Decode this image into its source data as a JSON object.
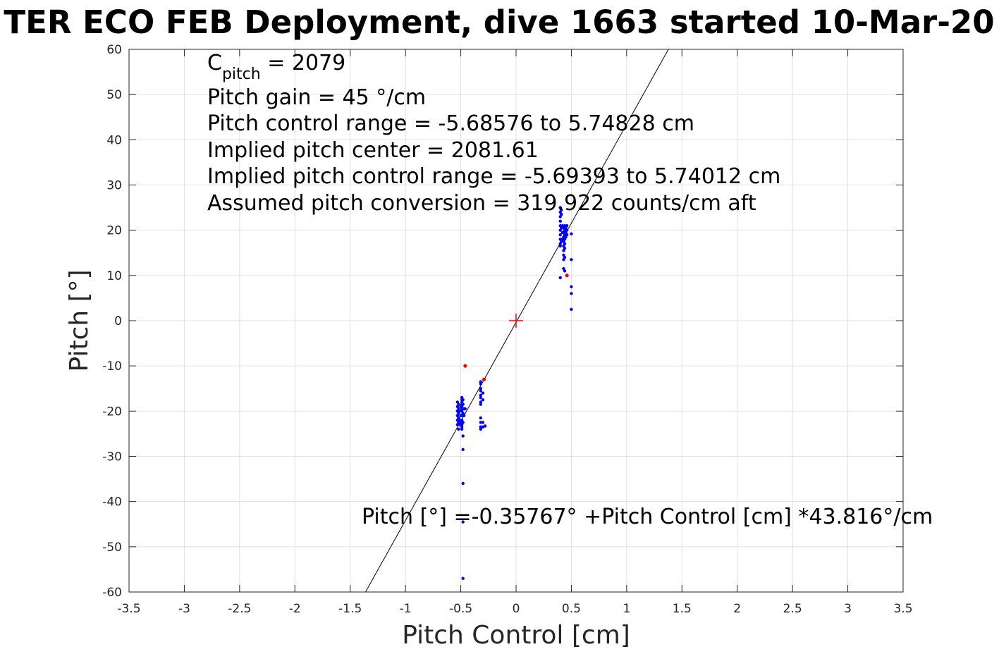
{
  "chart_data": {
    "type": "scatter",
    "title": "TER ECO FEB Deployment, dive 1663 started 10-Mar-20",
    "xlabel": "Pitch Control [cm]",
    "ylabel": "Pitch [°]",
    "xlim": [
      -3.5,
      3.5
    ],
    "ylim": [
      -60,
      60
    ],
    "x_ticks": [
      -3.5,
      -3,
      -2.5,
      -2,
      -1.5,
      -1,
      -0.5,
      0,
      0.5,
      1,
      1.5,
      2,
      2.5,
      3,
      3.5
    ],
    "x_tick_labels": [
      "-3.5",
      "-3",
      "-2.5",
      "-2",
      "-1.5",
      "-1",
      "-0.5",
      "0",
      "0.5",
      "1",
      "1.5",
      "2",
      "2.5",
      "3",
      "3.5"
    ],
    "y_ticks": [
      60,
      50,
      40,
      30,
      20,
      10,
      0,
      -10,
      -20,
      -30,
      -40,
      -50,
      -60
    ],
    "y_tick_labels": [
      "60",
      "50",
      "40",
      "30",
      "20",
      "10",
      "0",
      "-10",
      "-20",
      "-30",
      "-40",
      "-50",
      "-60"
    ],
    "grid": true,
    "annotations": {
      "c_pitch_main": "C",
      "c_pitch_sub": "pitch",
      "c_pitch_value": " = 2079",
      "pitch_gain": "Pitch gain = 45 °/cm",
      "control_range": "Pitch control range = -5.68576 to 5.74828 cm",
      "implied_center": "Implied pitch center = 2081.61",
      "implied_range": "Implied pitch control range = -5.69393 to 5.74012 cm",
      "conversion": "Assumed pitch conversion = 319.922 counts/cm aft",
      "fit_equation": "Pitch [°] =-0.35767° +Pitch Control [cm] *43.816°/cm"
    },
    "fit_line": {
      "intercept": -0.35767,
      "slope": 43.816,
      "color": "#000000",
      "x_range": [
        -1.36,
        1.38
      ]
    },
    "center_marker": {
      "x": 0,
      "y": 0,
      "color": "#ff0000"
    },
    "series": [
      {
        "color": "#0000ff",
        "points": [
          [
            -0.53,
            -18
          ],
          [
            -0.53,
            -19
          ],
          [
            -0.53,
            -20
          ],
          [
            -0.53,
            -21
          ],
          [
            -0.53,
            -22
          ],
          [
            -0.53,
            -23
          ],
          [
            -0.52,
            -18.5
          ],
          [
            -0.52,
            -19.5
          ],
          [
            -0.52,
            -20.5
          ],
          [
            -0.52,
            -21.5
          ],
          [
            -0.52,
            -22.5
          ],
          [
            -0.52,
            -24
          ],
          [
            -0.51,
            -20
          ],
          [
            -0.51,
            -22
          ],
          [
            -0.51,
            -23
          ],
          [
            -0.5,
            -19
          ],
          [
            -0.5,
            -21
          ],
          [
            -0.5,
            -22.5
          ],
          [
            -0.49,
            -17
          ],
          [
            -0.49,
            -17.5
          ],
          [
            -0.49,
            -18
          ],
          [
            -0.49,
            -18.5
          ],
          [
            -0.49,
            -19
          ],
          [
            -0.49,
            -19.5
          ],
          [
            -0.49,
            -20
          ],
          [
            -0.49,
            -21
          ],
          [
            -0.49,
            -22
          ],
          [
            -0.49,
            -23
          ],
          [
            -0.49,
            -23.5
          ],
          [
            -0.49,
            -24
          ],
          [
            -0.48,
            -17.5
          ],
          [
            -0.48,
            -18.5
          ],
          [
            -0.48,
            -20.5
          ],
          [
            -0.48,
            -22.5
          ],
          [
            -0.48,
            -25.5
          ],
          [
            -0.48,
            -28.5
          ],
          [
            -0.48,
            -36
          ],
          [
            -0.48,
            -44.5
          ],
          [
            -0.48,
            -57
          ],
          [
            -0.47,
            -19.5
          ],
          [
            -0.47,
            -21
          ],
          [
            -0.46,
            -19.5
          ],
          [
            -0.32,
            -13.5
          ],
          [
            -0.32,
            -14
          ],
          [
            -0.32,
            -15
          ],
          [
            -0.32,
            -15.5
          ],
          [
            -0.32,
            -16.5
          ],
          [
            -0.32,
            -17
          ],
          [
            -0.32,
            -18
          ],
          [
            -0.32,
            -18.5
          ],
          [
            -0.32,
            -21.5
          ],
          [
            -0.32,
            -22.5
          ],
          [
            -0.32,
            -23.5
          ],
          [
            -0.32,
            -24
          ],
          [
            -0.3,
            -16
          ],
          [
            -0.3,
            -17.5
          ],
          [
            -0.3,
            -22.5
          ],
          [
            -0.3,
            -23.5
          ],
          [
            -0.28,
            -23.3
          ],
          [
            0.4,
            9.5
          ],
          [
            0.4,
            16.5
          ],
          [
            0.4,
            17
          ],
          [
            0.4,
            18
          ],
          [
            0.4,
            19
          ],
          [
            0.4,
            20
          ],
          [
            0.4,
            21
          ],
          [
            0.4,
            22
          ],
          [
            0.4,
            23
          ],
          [
            0.4,
            24
          ],
          [
            0.4,
            25
          ],
          [
            0.41,
            17.5
          ],
          [
            0.41,
            20.5
          ],
          [
            0.41,
            23.5
          ],
          [
            0.41,
            24.5
          ],
          [
            0.42,
            18
          ],
          [
            0.42,
            19.5
          ],
          [
            0.42,
            21
          ],
          [
            0.43,
            11.5
          ],
          [
            0.43,
            13.5
          ],
          [
            0.43,
            14.5
          ],
          [
            0.43,
            15.5
          ],
          [
            0.43,
            16.5
          ],
          [
            0.43,
            17.5
          ],
          [
            0.43,
            18.5
          ],
          [
            0.43,
            19.5
          ],
          [
            0.43,
            20.5
          ],
          [
            0.44,
            11
          ],
          [
            0.44,
            14
          ],
          [
            0.44,
            16
          ],
          [
            0.44,
            17
          ],
          [
            0.44,
            18
          ],
          [
            0.44,
            19
          ],
          [
            0.44,
            20
          ],
          [
            0.44,
            21
          ],
          [
            0.45,
            18.5
          ],
          [
            0.45,
            19.5
          ],
          [
            0.45,
            20.5
          ],
          [
            0.46,
            19
          ],
          [
            0.46,
            20
          ],
          [
            0.46,
            21
          ],
          [
            0.5,
            2.5
          ],
          [
            0.5,
            6
          ],
          [
            0.5,
            7.5
          ],
          [
            0.5,
            13.5
          ],
          [
            0.5,
            19.2
          ]
        ]
      },
      {
        "color": "#ff0000",
        "points": [
          [
            -0.46,
            -10
          ],
          [
            -0.29,
            -13
          ],
          [
            0.46,
            10
          ]
        ]
      }
    ]
  }
}
